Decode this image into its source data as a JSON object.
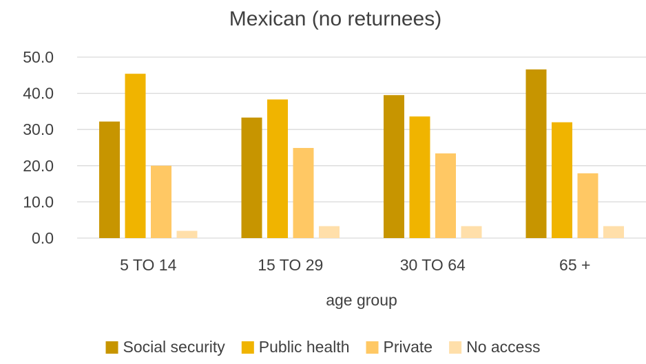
{
  "chart_data": {
    "type": "bar",
    "title": "Mexican (no returnees)",
    "xlabel": "age group",
    "ylabel": "",
    "categories": [
      "5 TO 14",
      "15 TO 29",
      "30 TO 64",
      "65 +"
    ],
    "ylim": [
      0,
      50
    ],
    "yticks": [
      "0.0",
      "10.0",
      "20.0",
      "30.0",
      "40.0",
      "50.0"
    ],
    "grid": true,
    "legend_position": "bottom",
    "series": [
      {
        "name": "Social security",
        "color": "#C79500",
        "values": [
          32.2,
          33.3,
          39.5,
          46.6
        ]
      },
      {
        "name": "Public health",
        "color": "#F0B400",
        "values": [
          45.4,
          38.3,
          33.6,
          32.0
        ]
      },
      {
        "name": "Private",
        "color": "#FFC864",
        "values": [
          20.0,
          24.9,
          23.4,
          17.9
        ]
      },
      {
        "name": "No access",
        "color": "#FFDFAA",
        "values": [
          2.0,
          3.3,
          3.3,
          3.3
        ]
      }
    ]
  }
}
